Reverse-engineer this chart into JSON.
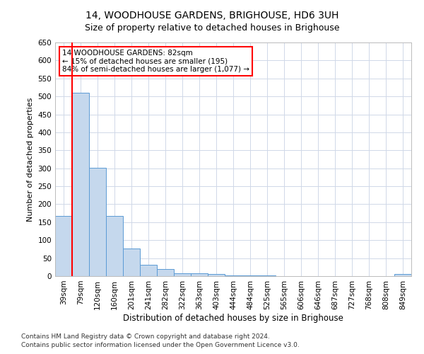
{
  "title": "14, WOODHOUSE GARDENS, BRIGHOUSE, HD6 3UH",
  "subtitle": "Size of property relative to detached houses in Brighouse",
  "xlabel": "Distribution of detached houses by size in Brighouse",
  "ylabel": "Number of detached properties",
  "categories": [
    "39sqm",
    "79sqm",
    "120sqm",
    "160sqm",
    "201sqm",
    "241sqm",
    "282sqm",
    "322sqm",
    "363sqm",
    "403sqm",
    "444sqm",
    "484sqm",
    "525sqm",
    "565sqm",
    "606sqm",
    "646sqm",
    "687sqm",
    "727sqm",
    "768sqm",
    "808sqm",
    "849sqm"
  ],
  "values": [
    168,
    510,
    302,
    168,
    77,
    32,
    20,
    8,
    8,
    5,
    1,
    1,
    1,
    0,
    0,
    0,
    0,
    0,
    0,
    0,
    5
  ],
  "bar_color": "#c5d8ed",
  "bar_edge_color": "#5b9bd5",
  "vline_color": "#ff0000",
  "vline_x_index": 1,
  "annotation_text": "14 WOODHOUSE GARDENS: 82sqm\n← 15% of detached houses are smaller (195)\n84% of semi-detached houses are larger (1,077) →",
  "annotation_box_color": "#ffffff",
  "annotation_box_edge": "#ff0000",
  "ylim": [
    0,
    650
  ],
  "yticks": [
    0,
    50,
    100,
    150,
    200,
    250,
    300,
    350,
    400,
    450,
    500,
    550,
    600,
    650
  ],
  "footer1": "Contains HM Land Registry data © Crown copyright and database right 2024.",
  "footer2": "Contains public sector information licensed under the Open Government Licence v3.0.",
  "bg_color": "#ffffff",
  "grid_color": "#d0d8e8",
  "title_fontsize": 10,
  "subtitle_fontsize": 9,
  "axis_label_fontsize": 8,
  "tick_fontsize": 7.5,
  "annotation_fontsize": 7.5,
  "footer_fontsize": 6.5
}
